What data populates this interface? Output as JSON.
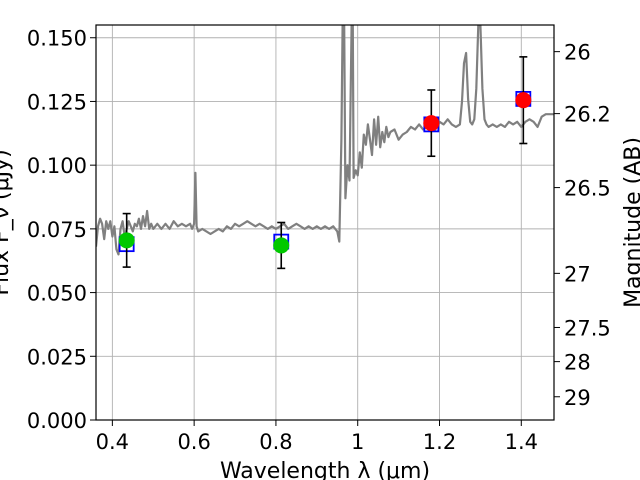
{
  "chart_data": {
    "type": "scatter",
    "title": "",
    "xlabel": "Wavelength  λ (μm)",
    "ylabel": "Flux F_ν (μJy)",
    "y2label": "Magnitude (AB)",
    "xlim": [
      0.36,
      1.48
    ],
    "ylim": [
      0.0,
      0.155
    ],
    "grid": true,
    "x_ticks": [
      {
        "value": 0.4,
        "label": "0.4"
      },
      {
        "value": 0.6,
        "label": "0.6"
      },
      {
        "value": 0.8,
        "label": "0.8"
      },
      {
        "value": 1.0,
        "label": "1"
      },
      {
        "value": 1.2,
        "label": "1.2"
      },
      {
        "value": 1.4,
        "label": "1.4"
      }
    ],
    "y_ticks": [
      {
        "value": 0.0,
        "label": "0.000"
      },
      {
        "value": 0.025,
        "label": "0.025"
      },
      {
        "value": 0.05,
        "label": "0.050"
      },
      {
        "value": 0.075,
        "label": "0.075"
      },
      {
        "value": 0.1,
        "label": "0.100"
      },
      {
        "value": 0.125,
        "label": "0.125"
      },
      {
        "value": 0.15,
        "label": "0.150"
      }
    ],
    "y2_ticks": [
      {
        "value": 26.0,
        "label": "26"
      },
      {
        "value": 26.2,
        "label": "26.2"
      },
      {
        "value": 26.5,
        "label": "26.5"
      },
      {
        "value": 27.0,
        "label": "27"
      },
      {
        "value": 27.5,
        "label": "27.5"
      },
      {
        "value": 28.0,
        "label": "28"
      },
      {
        "value": 29.0,
        "label": "29"
      }
    ],
    "spectrum": {
      "color": "#808080",
      "points": [
        [
          0.36,
          0.068
        ],
        [
          0.365,
          0.076
        ],
        [
          0.37,
          0.079
        ],
        [
          0.375,
          0.077
        ],
        [
          0.38,
          0.071
        ],
        [
          0.385,
          0.078
        ],
        [
          0.39,
          0.075
        ],
        [
          0.395,
          0.078
        ],
        [
          0.4,
          0.072
        ],
        [
          0.405,
          0.076
        ],
        [
          0.41,
          0.067
        ],
        [
          0.415,
          0.065
        ],
        [
          0.42,
          0.075
        ],
        [
          0.425,
          0.078
        ],
        [
          0.43,
          0.072
        ],
        [
          0.435,
          0.075
        ],
        [
          0.44,
          0.078
        ],
        [
          0.445,
          0.076
        ],
        [
          0.45,
          0.074
        ],
        [
          0.455,
          0.077
        ],
        [
          0.46,
          0.076
        ],
        [
          0.465,
          0.079
        ],
        [
          0.47,
          0.075
        ],
        [
          0.475,
          0.08
        ],
        [
          0.48,
          0.076
        ],
        [
          0.485,
          0.082
        ],
        [
          0.49,
          0.075
        ],
        [
          0.495,
          0.077
        ],
        [
          0.5,
          0.075
        ],
        [
          0.51,
          0.077
        ],
        [
          0.52,
          0.075
        ],
        [
          0.53,
          0.077
        ],
        [
          0.54,
          0.075
        ],
        [
          0.55,
          0.078
        ],
        [
          0.56,
          0.076
        ],
        [
          0.57,
          0.077
        ],
        [
          0.58,
          0.076
        ],
        [
          0.59,
          0.077
        ],
        [
          0.595,
          0.075
        ],
        [
          0.6,
          0.077
        ],
        [
          0.603,
          0.097
        ],
        [
          0.606,
          0.076
        ],
        [
          0.61,
          0.074
        ],
        [
          0.62,
          0.075
        ],
        [
          0.63,
          0.074
        ],
        [
          0.64,
          0.073
        ],
        [
          0.65,
          0.074
        ],
        [
          0.66,
          0.075
        ],
        [
          0.67,
          0.074
        ],
        [
          0.68,
          0.076
        ],
        [
          0.69,
          0.075
        ],
        [
          0.7,
          0.077
        ],
        [
          0.71,
          0.076
        ],
        [
          0.72,
          0.077
        ],
        [
          0.73,
          0.078
        ],
        [
          0.74,
          0.077
        ],
        [
          0.75,
          0.076
        ],
        [
          0.76,
          0.077
        ],
        [
          0.77,
          0.076
        ],
        [
          0.78,
          0.075
        ],
        [
          0.79,
          0.076
        ],
        [
          0.8,
          0.075
        ],
        [
          0.81,
          0.076
        ],
        [
          0.82,
          0.077
        ],
        [
          0.83,
          0.075
        ],
        [
          0.84,
          0.076
        ],
        [
          0.85,
          0.077
        ],
        [
          0.86,
          0.076
        ],
        [
          0.87,
          0.075
        ],
        [
          0.88,
          0.076
        ],
        [
          0.89,
          0.075
        ],
        [
          0.9,
          0.076
        ],
        [
          0.91,
          0.075
        ],
        [
          0.92,
          0.076
        ],
        [
          0.93,
          0.075
        ],
        [
          0.94,
          0.076
        ],
        [
          0.95,
          0.074
        ],
        [
          0.955,
          0.07
        ],
        [
          0.96,
          0.11
        ],
        [
          0.963,
          0.155
        ],
        [
          0.967,
          0.155
        ],
        [
          0.97,
          0.087
        ],
        [
          0.975,
          0.1
        ],
        [
          0.98,
          0.094
        ],
        [
          0.985,
          0.155
        ],
        [
          0.988,
          0.155
        ],
        [
          0.99,
          0.095
        ],
        [
          0.995,
          0.098
        ],
        [
          1.0,
          0.096
        ],
        [
          1.005,
          0.105
        ],
        [
          1.01,
          0.099
        ],
        [
          1.015,
          0.112
        ],
        [
          1.02,
          0.108
        ],
        [
          1.025,
          0.116
        ],
        [
          1.03,
          0.11
        ],
        [
          1.035,
          0.104
        ],
        [
          1.04,
          0.118
        ],
        [
          1.045,
          0.108
        ],
        [
          1.05,
          0.119
        ],
        [
          1.055,
          0.107
        ],
        [
          1.06,
          0.113
        ],
        [
          1.065,
          0.109
        ],
        [
          1.07,
          0.115
        ],
        [
          1.075,
          0.111
        ],
        [
          1.08,
          0.113
        ],
        [
          1.09,
          0.114
        ],
        [
          1.1,
          0.11
        ],
        [
          1.11,
          0.112
        ],
        [
          1.12,
          0.113
        ],
        [
          1.13,
          0.115
        ],
        [
          1.14,
          0.114
        ],
        [
          1.15,
          0.116
        ],
        [
          1.16,
          0.114
        ],
        [
          1.17,
          0.115
        ],
        [
          1.18,
          0.116
        ],
        [
          1.19,
          0.114
        ],
        [
          1.2,
          0.117
        ],
        [
          1.21,
          0.116
        ],
        [
          1.22,
          0.118
        ],
        [
          1.23,
          0.116
        ],
        [
          1.24,
          0.115
        ],
        [
          1.25,
          0.116
        ],
        [
          1.255,
          0.125
        ],
        [
          1.26,
          0.14
        ],
        [
          1.265,
          0.144
        ],
        [
          1.27,
          0.126
        ],
        [
          1.275,
          0.117
        ],
        [
          1.28,
          0.116
        ],
        [
          1.285,
          0.118
        ],
        [
          1.29,
          0.13
        ],
        [
          1.295,
          0.155
        ],
        [
          1.3,
          0.155
        ],
        [
          1.305,
          0.13
        ],
        [
          1.31,
          0.118
        ],
        [
          1.315,
          0.116
        ],
        [
          1.32,
          0.115
        ],
        [
          1.33,
          0.116
        ],
        [
          1.34,
          0.115
        ],
        [
          1.35,
          0.116
        ],
        [
          1.36,
          0.115
        ],
        [
          1.37,
          0.117
        ],
        [
          1.38,
          0.116
        ],
        [
          1.39,
          0.117
        ],
        [
          1.4,
          0.115
        ],
        [
          1.41,
          0.117
        ],
        [
          1.42,
          0.118
        ],
        [
          1.43,
          0.117
        ],
        [
          1.44,
          0.115
        ],
        [
          1.45,
          0.119
        ],
        [
          1.46,
          0.12
        ],
        [
          1.47,
          0.12
        ],
        [
          1.48,
          0.12
        ]
      ]
    },
    "model_boxes": {
      "color": "#0000ff",
      "points": [
        [
          0.435,
          0.069
        ],
        [
          0.813,
          0.07
        ],
        [
          1.18,
          0.116
        ],
        [
          1.405,
          0.126
        ]
      ]
    },
    "observed": {
      "colors": [
        "#00c800",
        "#00c800",
        "#ff0000",
        "#ff0000"
      ],
      "points": [
        {
          "x": 0.435,
          "y": 0.0705,
          "err": 0.0105
        },
        {
          "x": 0.813,
          "y": 0.0685,
          "err": 0.009
        },
        {
          "x": 1.18,
          "y": 0.1165,
          "err": 0.013
        },
        {
          "x": 1.405,
          "y": 0.1255,
          "err": 0.017
        }
      ]
    }
  }
}
